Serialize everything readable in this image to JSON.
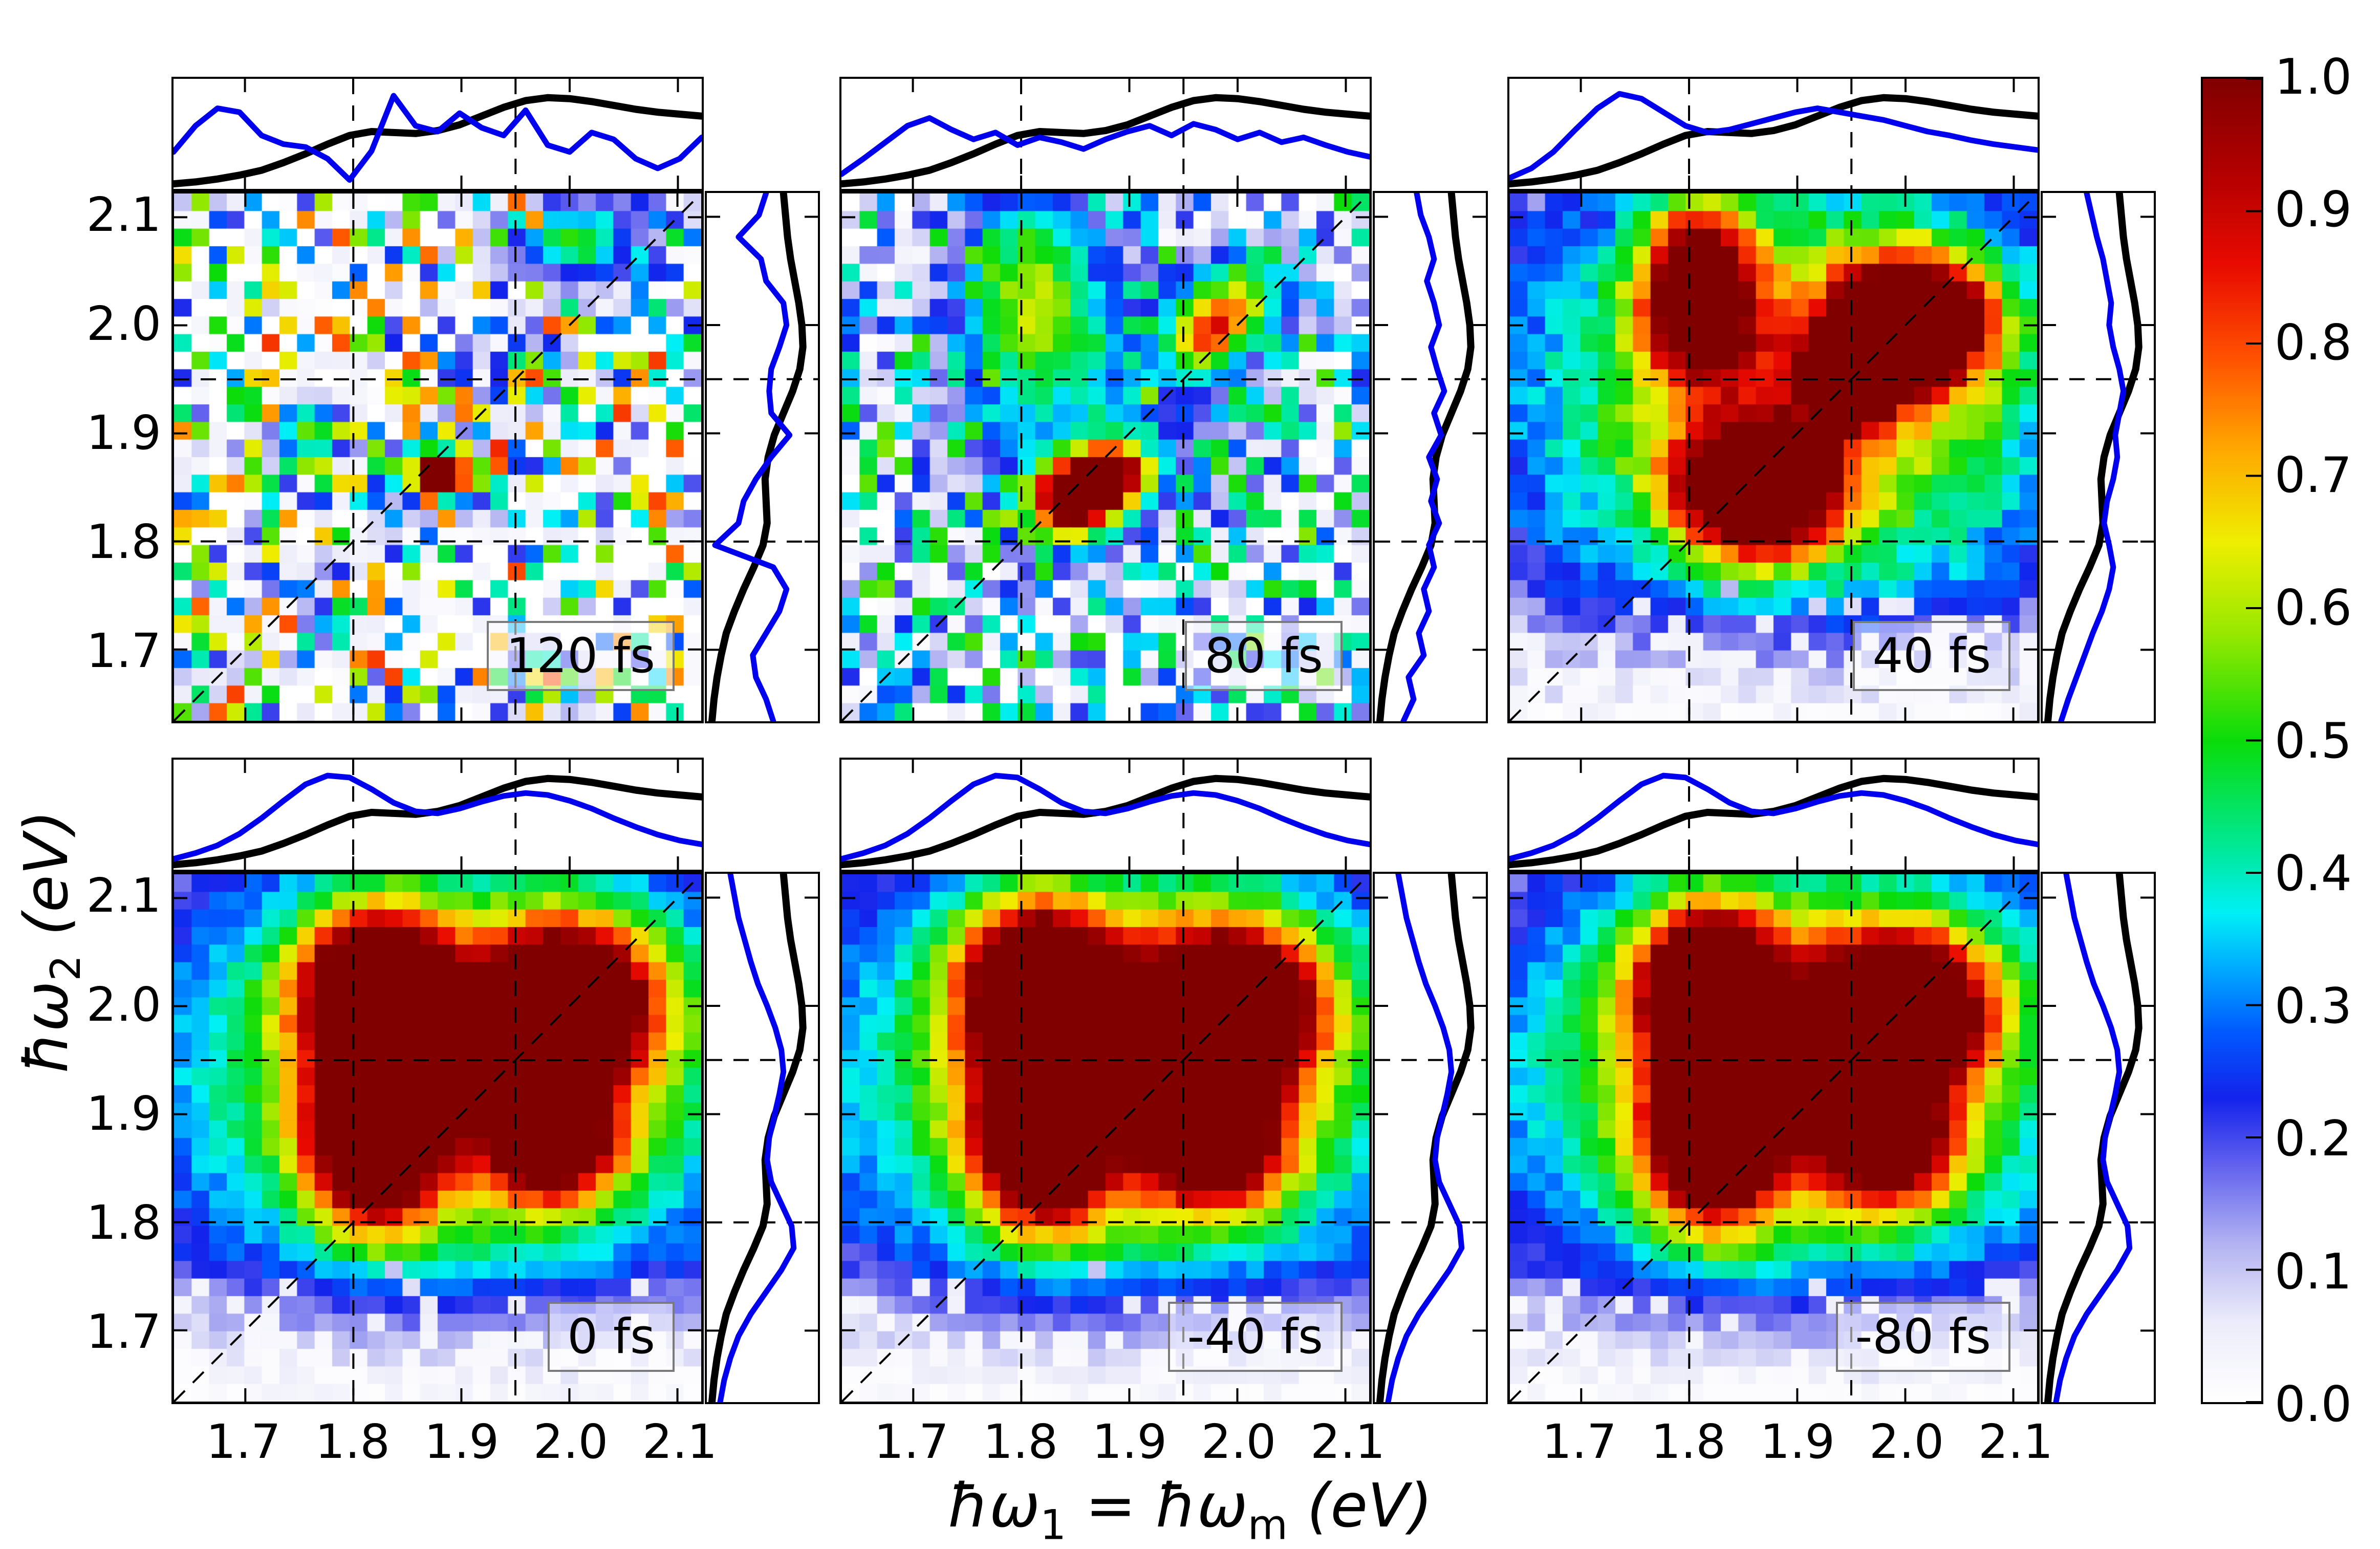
{
  "figure": {
    "background": "#ffffff"
  },
  "axes": {
    "xlabel": {
      "prefix": "ħω",
      "sub_a": "1",
      "equals": " = ħω",
      "sub_b": "m",
      "suffix": "  (eV)"
    },
    "ylabel": {
      "prefix": "ħω",
      "sub": "2",
      "suffix": "  (eV)"
    },
    "xtick_labels": [
      "1.7",
      "1.8",
      "1.9",
      "2.0",
      "2.1"
    ],
    "ytick_labels": [
      "2.1",
      "2.0",
      "1.9",
      "1.8",
      "1.7"
    ]
  },
  "colorbar": {
    "tick_labels": [
      "1.0",
      "0.9",
      "0.8",
      "0.7",
      "0.6",
      "0.5",
      "0.4",
      "0.3",
      "0.2",
      "0.1",
      "0.0"
    ],
    "tick_values": [
      1.0,
      0.9,
      0.8,
      0.7,
      0.6,
      0.5,
      0.4,
      0.3,
      0.2,
      0.1,
      0.0
    ]
  },
  "colors": {
    "curve_blue": "#0000ee",
    "curve_black": "#000000",
    "label_box_border": "#7a7a7a"
  },
  "chart_data": {
    "type": "heatmap",
    "x_range": [
      1.634,
      2.122
    ],
    "y_range": [
      1.634,
      2.122
    ],
    "grid_n": 30,
    "tick_values": [
      1.7,
      1.8,
      1.9,
      2.0,
      2.1
    ],
    "dashed_x": [
      1.8,
      1.95
    ],
    "dashed_y": [
      1.8,
      1.95
    ],
    "diagonal": true,
    "colormap_stops": [
      [
        0.0,
        255,
        255,
        255
      ],
      [
        0.06,
        236,
        236,
        250
      ],
      [
        0.12,
        178,
        178,
        242
      ],
      [
        0.18,
        96,
        96,
        238
      ],
      [
        0.23,
        20,
        35,
        235
      ],
      [
        0.28,
        0,
        90,
        255
      ],
      [
        0.33,
        0,
        175,
        255
      ],
      [
        0.37,
        0,
        240,
        245
      ],
      [
        0.42,
        0,
        232,
        150
      ],
      [
        0.5,
        10,
        220,
        10
      ],
      [
        0.58,
        150,
        232,
        0
      ],
      [
        0.65,
        238,
        238,
        0
      ],
      [
        0.72,
        255,
        168,
        0
      ],
      [
        0.79,
        255,
        80,
        0
      ],
      [
        0.86,
        232,
        10,
        0
      ],
      [
        0.93,
        178,
        0,
        0
      ],
      [
        1.0,
        128,
        0,
        0
      ]
    ],
    "absorption_black": [
      0.02,
      0.04,
      0.07,
      0.11,
      0.16,
      0.24,
      0.33,
      0.43,
      0.52,
      0.56,
      0.55,
      0.54,
      0.57,
      0.63,
      0.72,
      0.81,
      0.88,
      0.91,
      0.9,
      0.87,
      0.83,
      0.79,
      0.76,
      0.74,
      0.72
    ],
    "panels": [
      {
        "label": "120 fs",
        "row": 0,
        "col": 0,
        "seed": 11,
        "speckle_zero": 0.47,
        "speckle_gain": 0.8,
        "noise": 0.05,
        "diag_boost": 0.1,
        "bottom_fade": 0,
        "blobs": [
          [
            1.87,
            1.863,
            0.018,
            0.018,
            0.98
          ],
          [
            1.962,
            1.955,
            0.015,
            0.014,
            0.85
          ],
          [
            1.906,
            1.86,
            0.02,
            0.015,
            0.7
          ],
          [
            2.0,
            2.08,
            0.04,
            0.025,
            0.5
          ],
          [
            1.98,
            1.672,
            0.02,
            0.015,
            0.85
          ],
          [
            1.76,
            1.9,
            0.025,
            0.02,
            0.55
          ]
        ],
        "top_blue": [
          0.35,
          0.62,
          0.8,
          0.76,
          0.52,
          0.43,
          0.4,
          0.28,
          0.06,
          0.36,
          0.93,
          0.62,
          0.56,
          0.75,
          0.6,
          0.52,
          0.78,
          0.42,
          0.35,
          0.55,
          0.48,
          0.28,
          0.18,
          0.28,
          0.5
        ],
        "right_blue": [
          0.62,
          0.55,
          0.45,
          0.42,
          0.55,
          0.68,
          0.75,
          0.62,
          0.05,
          0.28,
          0.33,
          0.45,
          0.6,
          0.78,
          0.6,
          0.58,
          0.6,
          0.68,
          0.75,
          0.72,
          0.55,
          0.5,
          0.28,
          0.48,
          0.55
        ]
      },
      {
        "label": "80 fs",
        "row": 0,
        "col": 1,
        "seed": 22,
        "speckle_zero": 0.3,
        "speckle_gain": 0.55,
        "noise": 0.05,
        "diag_boost": 0.05,
        "bottom_fade": 0,
        "blobs": [
          [
            1.845,
            1.835,
            0.032,
            0.026,
            1.0
          ],
          [
            1.885,
            1.862,
            0.028,
            0.02,
            0.82
          ],
          [
            1.81,
            2.04,
            0.045,
            0.07,
            0.5
          ],
          [
            1.97,
            1.99,
            0.025,
            0.025,
            0.55
          ],
          [
            2.005,
            2.025,
            0.035,
            0.03,
            0.5
          ],
          [
            1.86,
            1.93,
            0.1,
            0.08,
            0.28
          ]
        ],
        "top_blue": [
          0.12,
          0.28,
          0.45,
          0.62,
          0.7,
          0.58,
          0.48,
          0.55,
          0.42,
          0.5,
          0.45,
          0.38,
          0.48,
          0.56,
          0.62,
          0.52,
          0.64,
          0.58,
          0.48,
          0.55,
          0.45,
          0.5,
          0.42,
          0.35,
          0.3
        ],
        "right_blue": [
          0.25,
          0.35,
          0.3,
          0.45,
          0.4,
          0.5,
          0.45,
          0.55,
          0.5,
          0.6,
          0.52,
          0.58,
          0.5,
          0.62,
          0.55,
          0.65,
          0.58,
          0.52,
          0.6,
          0.55,
          0.48,
          0.55,
          0.5,
          0.42,
          0.38
        ]
      },
      {
        "label": "40 fs",
        "row": 0,
        "col": 2,
        "seed": 33,
        "speckle_zero": 0.8,
        "speckle_gain": 0.3,
        "noise": 0.06,
        "diag_boost": 0.0,
        "bottom_fade": 1.76,
        "blobs": [
          [
            1.807,
            2.035,
            0.034,
            0.05,
            1.0
          ],
          [
            2.01,
            2.005,
            0.05,
            0.042,
            1.02
          ],
          [
            1.862,
            1.845,
            0.05,
            0.04,
            1.05
          ],
          [
            1.95,
            1.95,
            0.028,
            0.028,
            0.72
          ],
          [
            1.9,
            1.95,
            0.15,
            0.12,
            0.5
          ],
          [
            1.9,
            1.9,
            0.3,
            0.24,
            0.28
          ]
        ],
        "top_blue": [
          0.08,
          0.18,
          0.35,
          0.58,
          0.8,
          0.95,
          0.9,
          0.76,
          0.62,
          0.55,
          0.58,
          0.64,
          0.7,
          0.76,
          0.8,
          0.76,
          0.72,
          0.68,
          0.62,
          0.56,
          0.52,
          0.47,
          0.43,
          0.4,
          0.37
        ],
        "right_blue": [
          0.15,
          0.22,
          0.3,
          0.38,
          0.46,
          0.55,
          0.62,
          0.66,
          0.62,
          0.57,
          0.6,
          0.66,
          0.7,
          0.68,
          0.72,
          0.76,
          0.72,
          0.66,
          0.62,
          0.64,
          0.6,
          0.56,
          0.5,
          0.45,
          0.4
        ]
      },
      {
        "label": "0 fs",
        "row": 1,
        "col": 0,
        "seed": 44,
        "speckle_zero": 1.0,
        "speckle_gain": 0.0,
        "noise": 0.04,
        "diag_boost": 0.0,
        "bottom_fade": 1.77,
        "blobs": [
          [
            1.82,
            2.015,
            0.046,
            0.05,
            1.0
          ],
          [
            1.82,
            1.875,
            0.042,
            0.055,
            0.94
          ],
          [
            2.0,
            2.005,
            0.055,
            0.05,
            1.03
          ],
          [
            1.985,
            1.875,
            0.042,
            0.04,
            0.78
          ],
          [
            1.9,
            1.95,
            0.16,
            0.12,
            0.5
          ],
          [
            1.9,
            1.92,
            0.3,
            0.22,
            0.3
          ]
        ],
        "top_blue": [
          0.08,
          0.14,
          0.22,
          0.34,
          0.5,
          0.68,
          0.85,
          0.94,
          0.92,
          0.8,
          0.66,
          0.57,
          0.55,
          0.6,
          0.67,
          0.73,
          0.76,
          0.74,
          0.68,
          0.6,
          0.5,
          0.41,
          0.33,
          0.27,
          0.23
        ],
        "right_blue": [
          0.1,
          0.14,
          0.2,
          0.28,
          0.4,
          0.55,
          0.7,
          0.82,
          0.8,
          0.7,
          0.6,
          0.56,
          0.58,
          0.63,
          0.68,
          0.72,
          0.7,
          0.64,
          0.56,
          0.47,
          0.4,
          0.34,
          0.28,
          0.24,
          0.2
        ]
      },
      {
        "label": "-40 fs",
        "row": 1,
        "col": 1,
        "seed": 55,
        "speckle_zero": 1.0,
        "speckle_gain": 0.0,
        "noise": 0.04,
        "diag_boost": 0.0,
        "bottom_fade": 1.77,
        "blobs": [
          [
            1.815,
            2.02,
            0.047,
            0.052,
            1.0
          ],
          [
            1.82,
            1.875,
            0.043,
            0.055,
            0.96
          ],
          [
            1.995,
            2.0,
            0.056,
            0.05,
            1.04
          ],
          [
            1.98,
            1.87,
            0.045,
            0.04,
            0.8
          ],
          [
            1.9,
            1.95,
            0.16,
            0.12,
            0.52
          ],
          [
            1.9,
            1.92,
            0.3,
            0.22,
            0.3
          ]
        ],
        "top_blue": [
          0.08,
          0.14,
          0.22,
          0.34,
          0.5,
          0.68,
          0.85,
          0.94,
          0.92,
          0.8,
          0.66,
          0.57,
          0.55,
          0.6,
          0.67,
          0.73,
          0.76,
          0.74,
          0.68,
          0.6,
          0.5,
          0.41,
          0.33,
          0.27,
          0.23
        ],
        "right_blue": [
          0.1,
          0.14,
          0.2,
          0.28,
          0.4,
          0.55,
          0.7,
          0.82,
          0.8,
          0.7,
          0.6,
          0.56,
          0.58,
          0.63,
          0.68,
          0.72,
          0.7,
          0.64,
          0.56,
          0.47,
          0.4,
          0.34,
          0.28,
          0.24,
          0.2
        ]
      },
      {
        "label": "-80 fs",
        "row": 1,
        "col": 2,
        "seed": 66,
        "speckle_zero": 1.0,
        "speckle_gain": 0.0,
        "noise": 0.04,
        "diag_boost": 0.0,
        "bottom_fade": 1.77,
        "blobs": [
          [
            1.818,
            2.02,
            0.045,
            0.05,
            0.99
          ],
          [
            1.822,
            1.872,
            0.042,
            0.052,
            0.95
          ],
          [
            1.998,
            2.0,
            0.055,
            0.048,
            1.02
          ],
          [
            1.982,
            1.872,
            0.043,
            0.04,
            0.79
          ],
          [
            1.9,
            1.95,
            0.16,
            0.12,
            0.5
          ],
          [
            1.9,
            1.92,
            0.3,
            0.22,
            0.3
          ]
        ],
        "top_blue": [
          0.08,
          0.14,
          0.22,
          0.34,
          0.5,
          0.68,
          0.85,
          0.94,
          0.92,
          0.8,
          0.66,
          0.57,
          0.55,
          0.6,
          0.67,
          0.73,
          0.76,
          0.74,
          0.68,
          0.6,
          0.5,
          0.41,
          0.33,
          0.27,
          0.23
        ],
        "right_blue": [
          0.1,
          0.14,
          0.2,
          0.28,
          0.4,
          0.55,
          0.7,
          0.82,
          0.8,
          0.7,
          0.6,
          0.56,
          0.58,
          0.63,
          0.68,
          0.72,
          0.7,
          0.64,
          0.56,
          0.47,
          0.4,
          0.34,
          0.28,
          0.24,
          0.2
        ]
      }
    ]
  }
}
